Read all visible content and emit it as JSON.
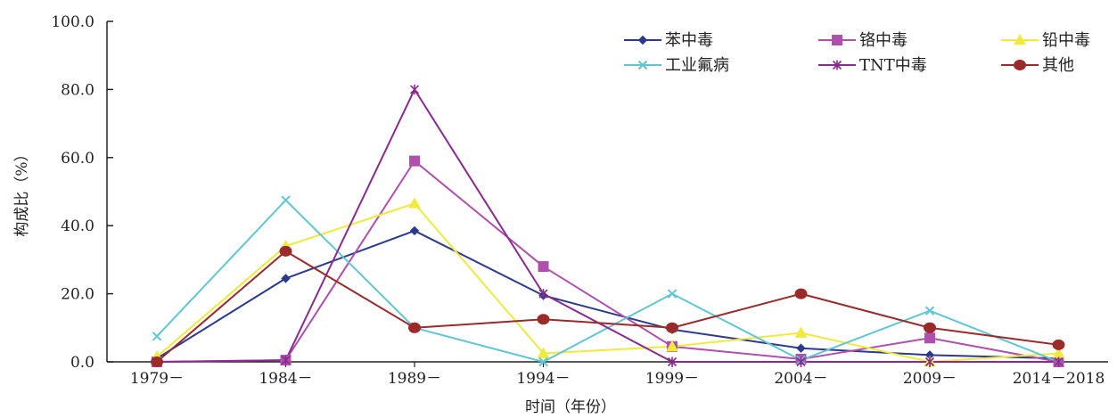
{
  "chart_data": {
    "type": "line",
    "title": "",
    "xlabel": "时间（年份）",
    "ylabel": "构成比（%）",
    "categories": [
      "1979－",
      "1984－",
      "1989－",
      "1994－",
      "1999－",
      "2004－",
      "2009－",
      "2014－2018"
    ],
    "ylim": [
      0,
      100
    ],
    "yticks": [
      "0.0",
      "20.0",
      "40.0",
      "60.0",
      "80.0",
      "100.0"
    ],
    "grid": false,
    "legend_position": "top-right",
    "series": [
      {
        "name": "苯中毒",
        "color": "#2b3a8f",
        "marker": "diamond",
        "values": [
          1.0,
          24.5,
          38.5,
          19.5,
          9.5,
          4.0,
          2.0,
          1.0
        ]
      },
      {
        "name": "铬中毒",
        "color": "#b04fae",
        "marker": "square",
        "values": [
          0.0,
          0.5,
          59.0,
          28.0,
          4.5,
          0.8,
          7.0,
          0.0
        ]
      },
      {
        "name": "铅中毒",
        "color": "#f0ea3c",
        "marker": "triangle",
        "values": [
          1.5,
          34.0,
          46.5,
          2.5,
          4.5,
          8.5,
          0.0,
          2.5
        ]
      },
      {
        "name": "工业氟病",
        "color": "#5fc6d4",
        "marker": "x",
        "values": [
          7.5,
          47.5,
          10.0,
          0.0,
          20.0,
          0.5,
          15.0,
          0.0
        ]
      },
      {
        "name": "TNT中毒",
        "color": "#8a2a91",
        "marker": "star",
        "values": [
          0.0,
          0.5,
          80.0,
          20.0,
          0.0,
          0.0,
          0.0,
          0.0
        ]
      },
      {
        "name": "其他",
        "color": "#9b2a2a",
        "marker": "circle",
        "values": [
          0.0,
          32.5,
          10.0,
          12.5,
          10.0,
          20.0,
          10.0,
          5.0
        ]
      }
    ]
  }
}
